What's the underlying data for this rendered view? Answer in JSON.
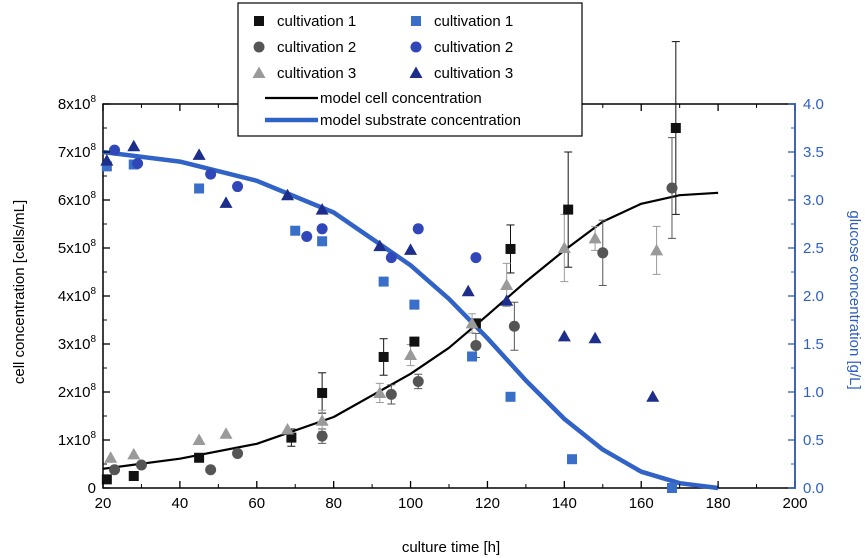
{
  "chart_data": {
    "type": "scatter",
    "xlabel": "culture time [h]",
    "ylabel_left": "cell concentration [cells/mL]",
    "ylabel_right": "glucose concentration [g/L]",
    "xlim": [
      20,
      200
    ],
    "ylim_left": [
      0,
      800000000
    ],
    "ylim_right": [
      0,
      4.0
    ],
    "x_ticks": [
      "20",
      "40",
      "60",
      "80",
      "100",
      "120",
      "140",
      "160",
      "180",
      "200"
    ],
    "y_left_ticks": [
      {
        "mantissa": "0",
        "exp": ""
      },
      {
        "mantissa": "1x10",
        "exp": "8"
      },
      {
        "mantissa": "2x10",
        "exp": "8"
      },
      {
        "mantissa": "3x10",
        "exp": "8"
      },
      {
        "mantissa": "4x10",
        "exp": "8"
      },
      {
        "mantissa": "5x10",
        "exp": "8"
      },
      {
        "mantissa": "6x10",
        "exp": "8"
      },
      {
        "mantissa": "7x10",
        "exp": "8"
      },
      {
        "mantissa": "8x10",
        "exp": "8"
      }
    ],
    "y_right_ticks": [
      "0.0",
      "0.5",
      "1.0",
      "1.5",
      "2.0",
      "2.5",
      "3.0",
      "3.5",
      "4.0"
    ],
    "colors": {
      "black": "#111111",
      "gray_dark": "#555555",
      "gray_light": "#9a9a9a",
      "blue_light": "#3a6fc9",
      "blue_mid": "#2f47b8",
      "blue_dark": "#1d2d8a",
      "model_cell": "#000000",
      "model_substrate": "#3162c6",
      "right_axis": "#2f5fc0"
    },
    "legend": {
      "placement": "top-center",
      "entries": [
        {
          "label": "cultivation 1",
          "marker": "square",
          "color": "black"
        },
        {
          "label": "cultivation 1",
          "marker": "square",
          "color": "blue_light"
        },
        {
          "label": "cultivation 2",
          "marker": "circle",
          "color": "gray_dark"
        },
        {
          "label": "cultivation 2",
          "marker": "circle",
          "color": "blue_mid"
        },
        {
          "label": "cultivation 3",
          "marker": "triangle",
          "color": "gray_light"
        },
        {
          "label": "cultivation 3",
          "marker": "triangle",
          "color": "blue_dark"
        },
        {
          "label": "model cell concentration",
          "marker": "line",
          "color": "model_cell"
        },
        {
          "label": "model substrate concentration",
          "marker": "line",
          "color": "model_substrate"
        }
      ]
    },
    "series": [
      {
        "name": "cultivation 1",
        "axis": "left",
        "marker": "square",
        "color": "black",
        "points": [
          {
            "x": 21,
            "y": 18000000
          },
          {
            "x": 28,
            "y": 25000000
          },
          {
            "x": 45,
            "y": 63000000
          },
          {
            "x": 69,
            "y": 105000000,
            "err": 18000000
          },
          {
            "x": 77,
            "y": 198000000,
            "err": 42000000
          },
          {
            "x": 93,
            "y": 273000000,
            "err": 38000000
          },
          {
            "x": 101,
            "y": 305000000
          },
          {
            "x": 117,
            "y": 343000000
          },
          {
            "x": 126,
            "y": 498000000,
            "err": 50000000
          },
          {
            "x": 141,
            "y": 580000000,
            "err": 120000000
          },
          {
            "x": 169,
            "y": 750000000,
            "err": 180000000
          }
        ]
      },
      {
        "name": "cultivation 2",
        "axis": "left",
        "marker": "circle",
        "color": "gray_dark",
        "points": [
          {
            "x": 23,
            "y": 38000000
          },
          {
            "x": 30,
            "y": 48000000
          },
          {
            "x": 48,
            "y": 38000000
          },
          {
            "x": 55,
            "y": 72000000
          },
          {
            "x": 77,
            "y": 108000000,
            "err": 15000000
          },
          {
            "x": 95,
            "y": 195000000,
            "err": 20000000
          },
          {
            "x": 102,
            "y": 222000000,
            "err": 15000000
          },
          {
            "x": 117,
            "y": 297000000,
            "err": 25000000
          },
          {
            "x": 127,
            "y": 337000000,
            "err": 50000000
          },
          {
            "x": 150,
            "y": 490000000,
            "err": 68000000
          },
          {
            "x": 168,
            "y": 625000000,
            "err": 105000000
          }
        ]
      },
      {
        "name": "cultivation 3",
        "axis": "left",
        "marker": "triangle",
        "color": "gray_light",
        "points": [
          {
            "x": 22,
            "y": 63000000
          },
          {
            "x": 28,
            "y": 70000000
          },
          {
            "x": 45,
            "y": 100000000
          },
          {
            "x": 52,
            "y": 113000000
          },
          {
            "x": 68,
            "y": 122000000
          },
          {
            "x": 77,
            "y": 140000000,
            "err": 22000000
          },
          {
            "x": 92,
            "y": 198000000,
            "err": 20000000
          },
          {
            "x": 100,
            "y": 277000000,
            "err": 22000000
          },
          {
            "x": 116,
            "y": 343000000,
            "err": 20000000
          },
          {
            "x": 125,
            "y": 423000000,
            "err": 45000000
          },
          {
            "x": 140,
            "y": 500000000,
            "err": 70000000
          },
          {
            "x": 148,
            "y": 520000000,
            "err": 25000000
          },
          {
            "x": 164,
            "y": 495000000,
            "err": 50000000
          }
        ]
      },
      {
        "name": "cultivation 1",
        "axis": "right",
        "marker": "square",
        "color": "blue_light",
        "points": [
          {
            "x": 21,
            "y": 3.35
          },
          {
            "x": 28,
            "y": 3.37
          },
          {
            "x": 45,
            "y": 3.12
          },
          {
            "x": 70,
            "y": 2.68
          },
          {
            "x": 77,
            "y": 2.57
          },
          {
            "x": 93,
            "y": 2.15
          },
          {
            "x": 101,
            "y": 1.91
          },
          {
            "x": 116,
            "y": 1.37
          },
          {
            "x": 126,
            "y": 0.95
          },
          {
            "x": 142,
            "y": 0.3
          },
          {
            "x": 168,
            "y": 0.0
          }
        ]
      },
      {
        "name": "cultivation 2",
        "axis": "right",
        "marker": "circle",
        "color": "blue_mid",
        "points": [
          {
            "x": 23,
            "y": 3.52
          },
          {
            "x": 29,
            "y": 3.38
          },
          {
            "x": 48,
            "y": 3.27
          },
          {
            "x": 55,
            "y": 3.14
          },
          {
            "x": 73,
            "y": 2.62
          },
          {
            "x": 77,
            "y": 2.7
          },
          {
            "x": 95,
            "y": 2.4
          },
          {
            "x": 102,
            "y": 2.7
          },
          {
            "x": 117,
            "y": 2.4
          }
        ]
      },
      {
        "name": "cultivation 3",
        "axis": "right",
        "marker": "triangle",
        "color": "blue_dark",
        "points": [
          {
            "x": 21,
            "y": 3.41
          },
          {
            "x": 28,
            "y": 3.56
          },
          {
            "x": 45,
            "y": 3.47
          },
          {
            "x": 52,
            "y": 2.97
          },
          {
            "x": 68,
            "y": 3.05
          },
          {
            "x": 77,
            "y": 2.9
          },
          {
            "x": 92,
            "y": 2.52
          },
          {
            "x": 100,
            "y": 2.48
          },
          {
            "x": 115,
            "y": 2.05
          },
          {
            "x": 125,
            "y": 1.95
          },
          {
            "x": 140,
            "y": 1.58
          },
          {
            "x": 148,
            "y": 1.56
          },
          {
            "x": 163,
            "y": 0.95
          }
        ]
      }
    ],
    "model_cell_concentration": {
      "axis": "left",
      "points": [
        {
          "x": 20,
          "y": 40000000
        },
        {
          "x": 40,
          "y": 61000000
        },
        {
          "x": 60,
          "y": 92000000
        },
        {
          "x": 80,
          "y": 148000000
        },
        {
          "x": 100,
          "y": 238000000
        },
        {
          "x": 110,
          "y": 292000000
        },
        {
          "x": 120,
          "y": 360000000
        },
        {
          "x": 130,
          "y": 430000000
        },
        {
          "x": 140,
          "y": 495000000
        },
        {
          "x": 150,
          "y": 555000000
        },
        {
          "x": 160,
          "y": 592000000
        },
        {
          "x": 170,
          "y": 610000000
        },
        {
          "x": 180,
          "y": 615000000
        }
      ]
    },
    "model_substrate_concentration": {
      "axis": "right",
      "points": [
        {
          "x": 20,
          "y": 3.5
        },
        {
          "x": 40,
          "y": 3.4
        },
        {
          "x": 60,
          "y": 3.2
        },
        {
          "x": 80,
          "y": 2.87
        },
        {
          "x": 100,
          "y": 2.32
        },
        {
          "x": 110,
          "y": 1.97
        },
        {
          "x": 120,
          "y": 1.56
        },
        {
          "x": 130,
          "y": 1.12
        },
        {
          "x": 140,
          "y": 0.72
        },
        {
          "x": 150,
          "y": 0.4
        },
        {
          "x": 160,
          "y": 0.17
        },
        {
          "x": 170,
          "y": 0.05
        },
        {
          "x": 180,
          "y": 0.0
        }
      ]
    }
  }
}
